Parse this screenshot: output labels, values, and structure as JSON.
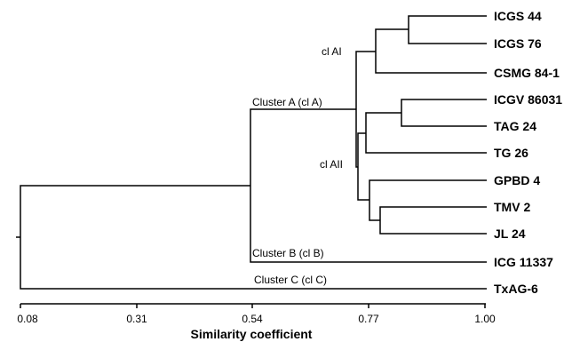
{
  "leaves": [
    "ICGS 44",
    "ICGS 76",
    "CSMG 84-1",
    "ICGV 86031",
    "TAG 24",
    "TG 26",
    "GPBD 4",
    "TMV 2",
    "JL 24",
    "ICG 11337",
    "TxAG-6"
  ],
  "cluster_labels": {
    "clAI": "cl AI",
    "clAII": "cl AII",
    "clusterA": "Cluster A (cl A)",
    "clusterB": "Cluster B (cl B)",
    "clusterC": "Cluster C (cl C)"
  },
  "axis": {
    "title": "Similarity coefficient",
    "ticks": [
      "0.08",
      "0.31",
      "0.54",
      "0.77",
      "1.00"
    ]
  }
}
